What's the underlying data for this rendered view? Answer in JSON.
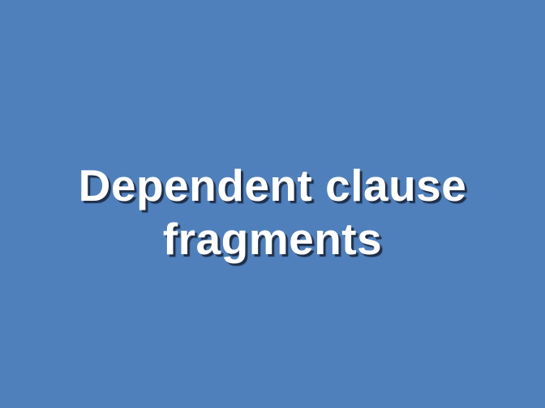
{
  "slide": {
    "title_lines": [
      "Dependent clause",
      "fragments"
    ],
    "background_color": "#5080BC",
    "text_color": "#FFFFFF",
    "shadow_color": "#1F2F4A"
  }
}
